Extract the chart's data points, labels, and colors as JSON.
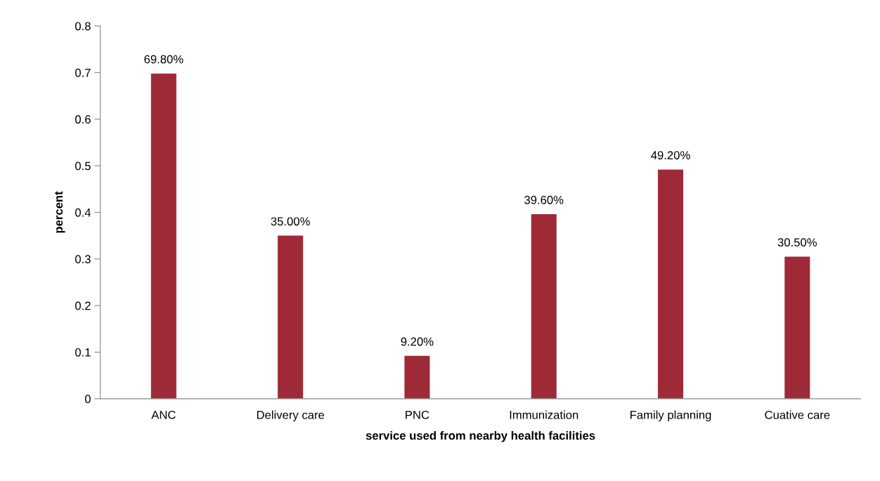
{
  "chart_data": {
    "type": "bar",
    "xlabel": "service used from nearby health facilities",
    "ylabel": "percent",
    "categories": [
      "ANC",
      "Delivery care",
      "PNC",
      "Immunization",
      "Family planning",
      "Cuative care"
    ],
    "values": [
      0.698,
      0.35,
      0.092,
      0.396,
      0.492,
      0.305
    ],
    "value_labels": [
      "69.80%",
      "35.00%",
      "9.20%",
      "39.60%",
      "49.20%",
      "30.50%"
    ],
    "color": "#9e2a38",
    "ylim": [
      0,
      0.8
    ],
    "yticks": [
      0,
      0.1,
      0.2,
      0.3,
      0.4,
      0.5,
      0.6,
      0.7,
      0.8
    ],
    "grid": false
  }
}
